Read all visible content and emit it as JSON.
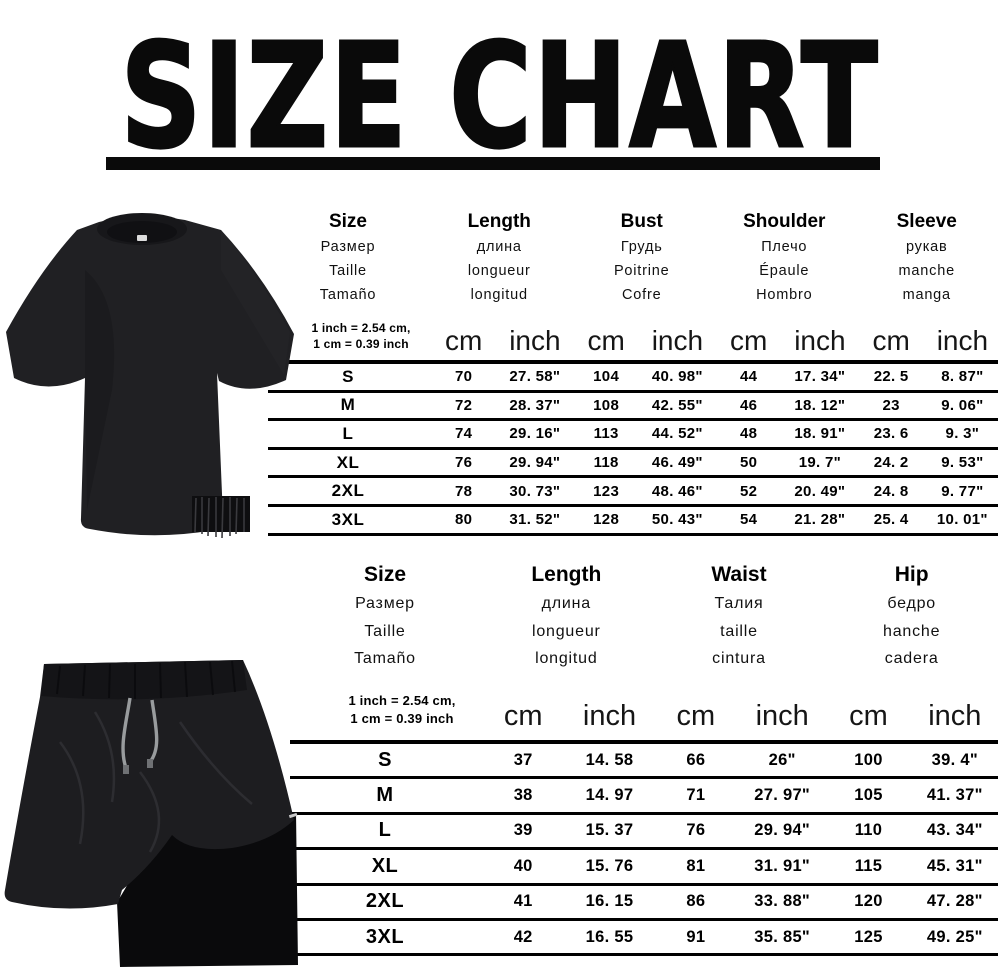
{
  "title": "SIZE CHART",
  "conversion_note": {
    "line1": "1 inch = 2.54 cm,",
    "line2": "1 cm = 0.39 inch"
  },
  "tshirt_section": {
    "photo_alt": "black oversized short-sleeve t-shirt",
    "columns": [
      {
        "en": "Size",
        "ru": "Размер",
        "fr": "Taille",
        "es": "Tamaño"
      },
      {
        "en": "Length",
        "ru": "длина",
        "fr": "longueur",
        "es": "longitud"
      },
      {
        "en": "Bust",
        "ru": "Грудь",
        "fr": "Poitrine",
        "es": "Cofre"
      },
      {
        "en": "Shoulder",
        "ru": "Плечо",
        "fr": "Épaule",
        "es": "Hombro"
      },
      {
        "en": "Sleeve",
        "ru": "рукав",
        "fr": "manche",
        "es": "manga"
      }
    ],
    "unit_row": [
      "cm",
      "inch",
      "cm",
      "inch",
      "cm",
      "inch",
      "cm",
      "inch"
    ],
    "rows": [
      {
        "size": "S",
        "cells": [
          "70",
          "27. 58\"",
          "104",
          "40. 98\"",
          "44",
          "17. 34\"",
          "22. 5",
          "8. 87\""
        ]
      },
      {
        "size": "M",
        "cells": [
          "72",
          "28. 37\"",
          "108",
          "42. 55\"",
          "46",
          "18. 12\"",
          "23",
          "9. 06\""
        ]
      },
      {
        "size": "L",
        "cells": [
          "74",
          "29. 16\"",
          "113",
          "44. 52\"",
          "48",
          "18. 91\"",
          "23. 6",
          "9. 3\""
        ]
      },
      {
        "size": "XL",
        "cells": [
          "76",
          "29. 94\"",
          "118",
          "46. 49\"",
          "50",
          "19. 7\"",
          "24. 2",
          "9. 53\""
        ]
      },
      {
        "size": "2XL",
        "cells": [
          "78",
          "30. 73\"",
          "123",
          "48. 46\"",
          "52",
          "20. 49\"",
          "24. 8",
          "9. 77\""
        ]
      },
      {
        "size": "3XL",
        "cells": [
          "80",
          "31. 52\"",
          "128",
          "50. 43\"",
          "54",
          "21. 28\"",
          "25. 4",
          "10. 01\""
        ]
      }
    ]
  },
  "shorts_section": {
    "photo_alt": "black gym shorts with drawstring and inner liner",
    "columns": [
      {
        "en": "Size",
        "ru": "Размер",
        "fr": "Taille",
        "es": "Tamaño"
      },
      {
        "en": "Length",
        "ru": "длина",
        "fr": "longueur",
        "es": "longitud"
      },
      {
        "en": "Waist",
        "ru": "Талия",
        "fr": "taille",
        "es": "cintura"
      },
      {
        "en": "Hip",
        "ru": "бедро",
        "fr": "hanche",
        "es": "cadera"
      }
    ],
    "unit_row": [
      "cm",
      "inch",
      "cm",
      "inch",
      "cm",
      "inch"
    ],
    "rows": [
      {
        "size": "S",
        "cells": [
          "37",
          "14. 58",
          "66",
          "26\"",
          "100",
          "39. 4\""
        ]
      },
      {
        "size": "M",
        "cells": [
          "38",
          "14. 97",
          "71",
          "27. 97\"",
          "105",
          "41. 37\""
        ]
      },
      {
        "size": "L",
        "cells": [
          "39",
          "15. 37",
          "76",
          "29. 94\"",
          "110",
          "43. 34\""
        ]
      },
      {
        "size": "XL",
        "cells": [
          "40",
          "15. 76",
          "81",
          "31. 91\"",
          "115",
          "45. 31\""
        ]
      },
      {
        "size": "2XL",
        "cells": [
          "41",
          "16. 15",
          "86",
          "33. 88\"",
          "120",
          "47. 28\""
        ]
      },
      {
        "size": "3XL",
        "cells": [
          "42",
          "16. 55",
          "91",
          "35. 85\"",
          "125",
          "49. 25\""
        ]
      }
    ]
  },
  "colors": {
    "text": "#000000",
    "title": "#0a0a0a",
    "tee_fabric": "#202023",
    "shorts_fabric": "#1d1d20",
    "liner_fabric": "#0a0a0c",
    "drawstring": "#999c9e",
    "background": "#ffffff"
  }
}
